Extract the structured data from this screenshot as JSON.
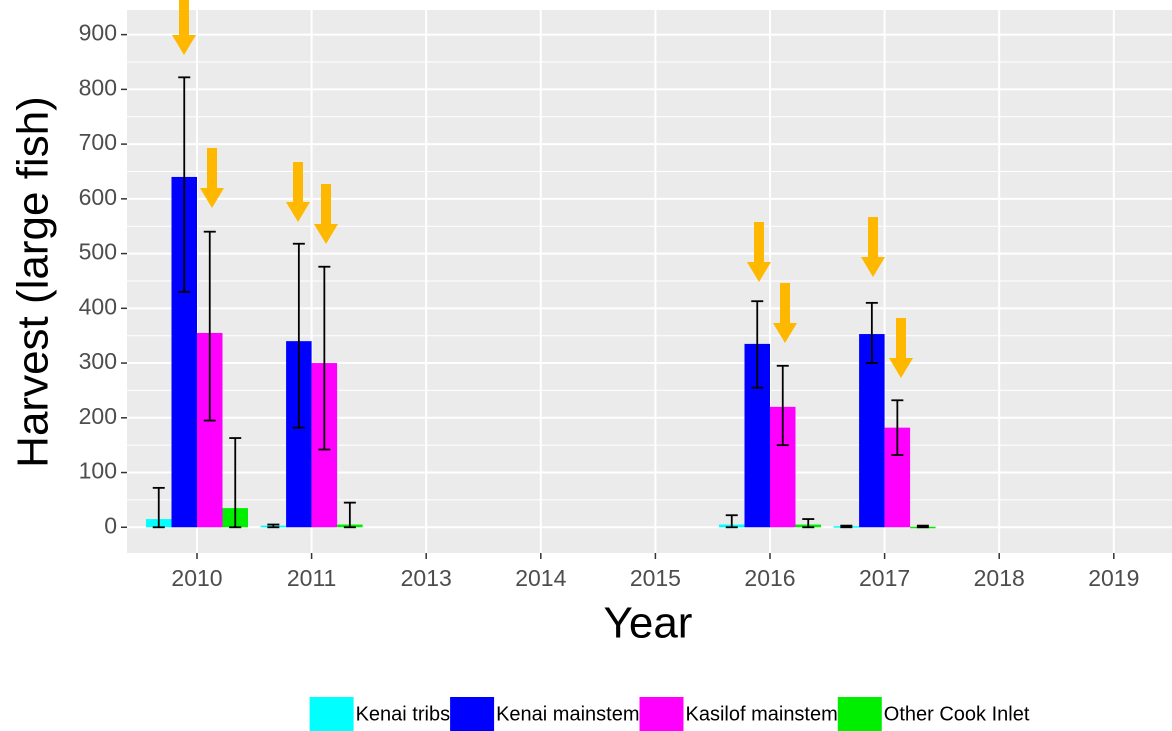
{
  "chart_data": {
    "type": "bar",
    "x_label": "Year",
    "y_label": "Harvest (large fish)",
    "categories": [
      "2010",
      "2011",
      "2013",
      "2014",
      "2015",
      "2016",
      "2017",
      "2018",
      "2019"
    ],
    "series": [
      {
        "name": "Kenai tribs",
        "color": "#00ffff",
        "values": [
          15,
          3,
          null,
          null,
          null,
          5,
          2,
          null,
          null
        ],
        "lower": [
          0,
          0,
          null,
          null,
          null,
          0,
          0,
          null,
          null
        ],
        "upper": [
          72,
          5,
          null,
          null,
          null,
          22,
          3,
          null,
          null
        ]
      },
      {
        "name": "Kenai mainstem",
        "color": "#0000ff",
        "values": [
          640,
          340,
          null,
          null,
          null,
          335,
          353,
          null,
          null
        ],
        "lower": [
          430,
          182,
          null,
          null,
          null,
          255,
          300,
          null,
          null
        ],
        "upper": [
          822,
          518,
          null,
          null,
          null,
          413,
          410,
          null,
          null
        ]
      },
      {
        "name": "Kasilof mainstem",
        "color": "#ff00ff",
        "values": [
          355,
          300,
          null,
          null,
          null,
          220,
          182,
          null,
          null
        ],
        "lower": [
          195,
          142,
          null,
          null,
          null,
          150,
          132,
          null,
          null
        ],
        "upper": [
          540,
          476,
          null,
          null,
          null,
          295,
          232,
          null,
          null
        ]
      },
      {
        "name": "Other Cook Inlet",
        "color": "#00ee00",
        "values": [
          35,
          5,
          null,
          null,
          null,
          5,
          1,
          null,
          null
        ],
        "lower": [
          0,
          0,
          null,
          null,
          null,
          0,
          0,
          null,
          null
        ],
        "upper": [
          163,
          45,
          null,
          null,
          null,
          15,
          3,
          null,
          null
        ]
      }
    ],
    "ylim": [
      -47,
      945
    ],
    "yticks": [
      0,
      100,
      200,
      300,
      400,
      500,
      600,
      700,
      800,
      900
    ],
    "grid": true,
    "legend": "bottom"
  }
}
